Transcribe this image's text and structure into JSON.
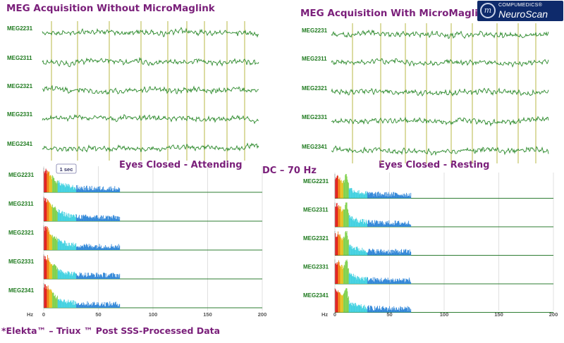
{
  "titles": {
    "left_top": "MEG Acquisition Without MicroMaglink",
    "right_top": "MEG Acquisition With MicroMaglink",
    "left_condition": "Eyes Closed  - Attending",
    "right_condition": "Eyes Closed  - Resting",
    "band": "DC – 70 Hz",
    "footer": "*Elekta™ – Triux ™   Post SSS-Processed Data"
  },
  "logo": {
    "line1": "COMPUMEDICS®",
    "line2": "NeuroScan",
    "mark": "m"
  },
  "scale_bar": "1 sec",
  "colors": {
    "title": "#7a1f7a",
    "trace": "#2e8b2e",
    "label": "#1e7a1e",
    "marker": "#c8c870"
  },
  "chart_data": [
    {
      "type": "line",
      "name_hint": "raw-left",
      "channels": [
        "MEG2231",
        "MEG2311",
        "MEG2321",
        "MEG2331",
        "MEG2341"
      ]
    },
    {
      "type": "line",
      "name_hint": "raw-right",
      "channels": [
        "MEG2231",
        "MEG2311",
        "MEG2321",
        "MEG2331",
        "MEG2341"
      ]
    },
    {
      "type": "area",
      "name_hint": "spectrum-left",
      "channels": [
        "MEG2231",
        "MEG2311",
        "MEG2321",
        "MEG2331",
        "MEG2341"
      ],
      "xlabel": "Hz",
      "xlim": [
        0,
        200
      ],
      "xticks": [
        0,
        50,
        100,
        150,
        200
      ],
      "grid": true
    },
    {
      "type": "area",
      "name_hint": "spectrum-right",
      "channels": [
        "MEG2231",
        "MEG2311",
        "MEG2321",
        "MEG2331",
        "MEG2341"
      ],
      "xlabel": "Hz",
      "xlim": [
        0,
        200
      ],
      "xticks": [
        0,
        50,
        100,
        150,
        200
      ],
      "grid": true
    }
  ]
}
